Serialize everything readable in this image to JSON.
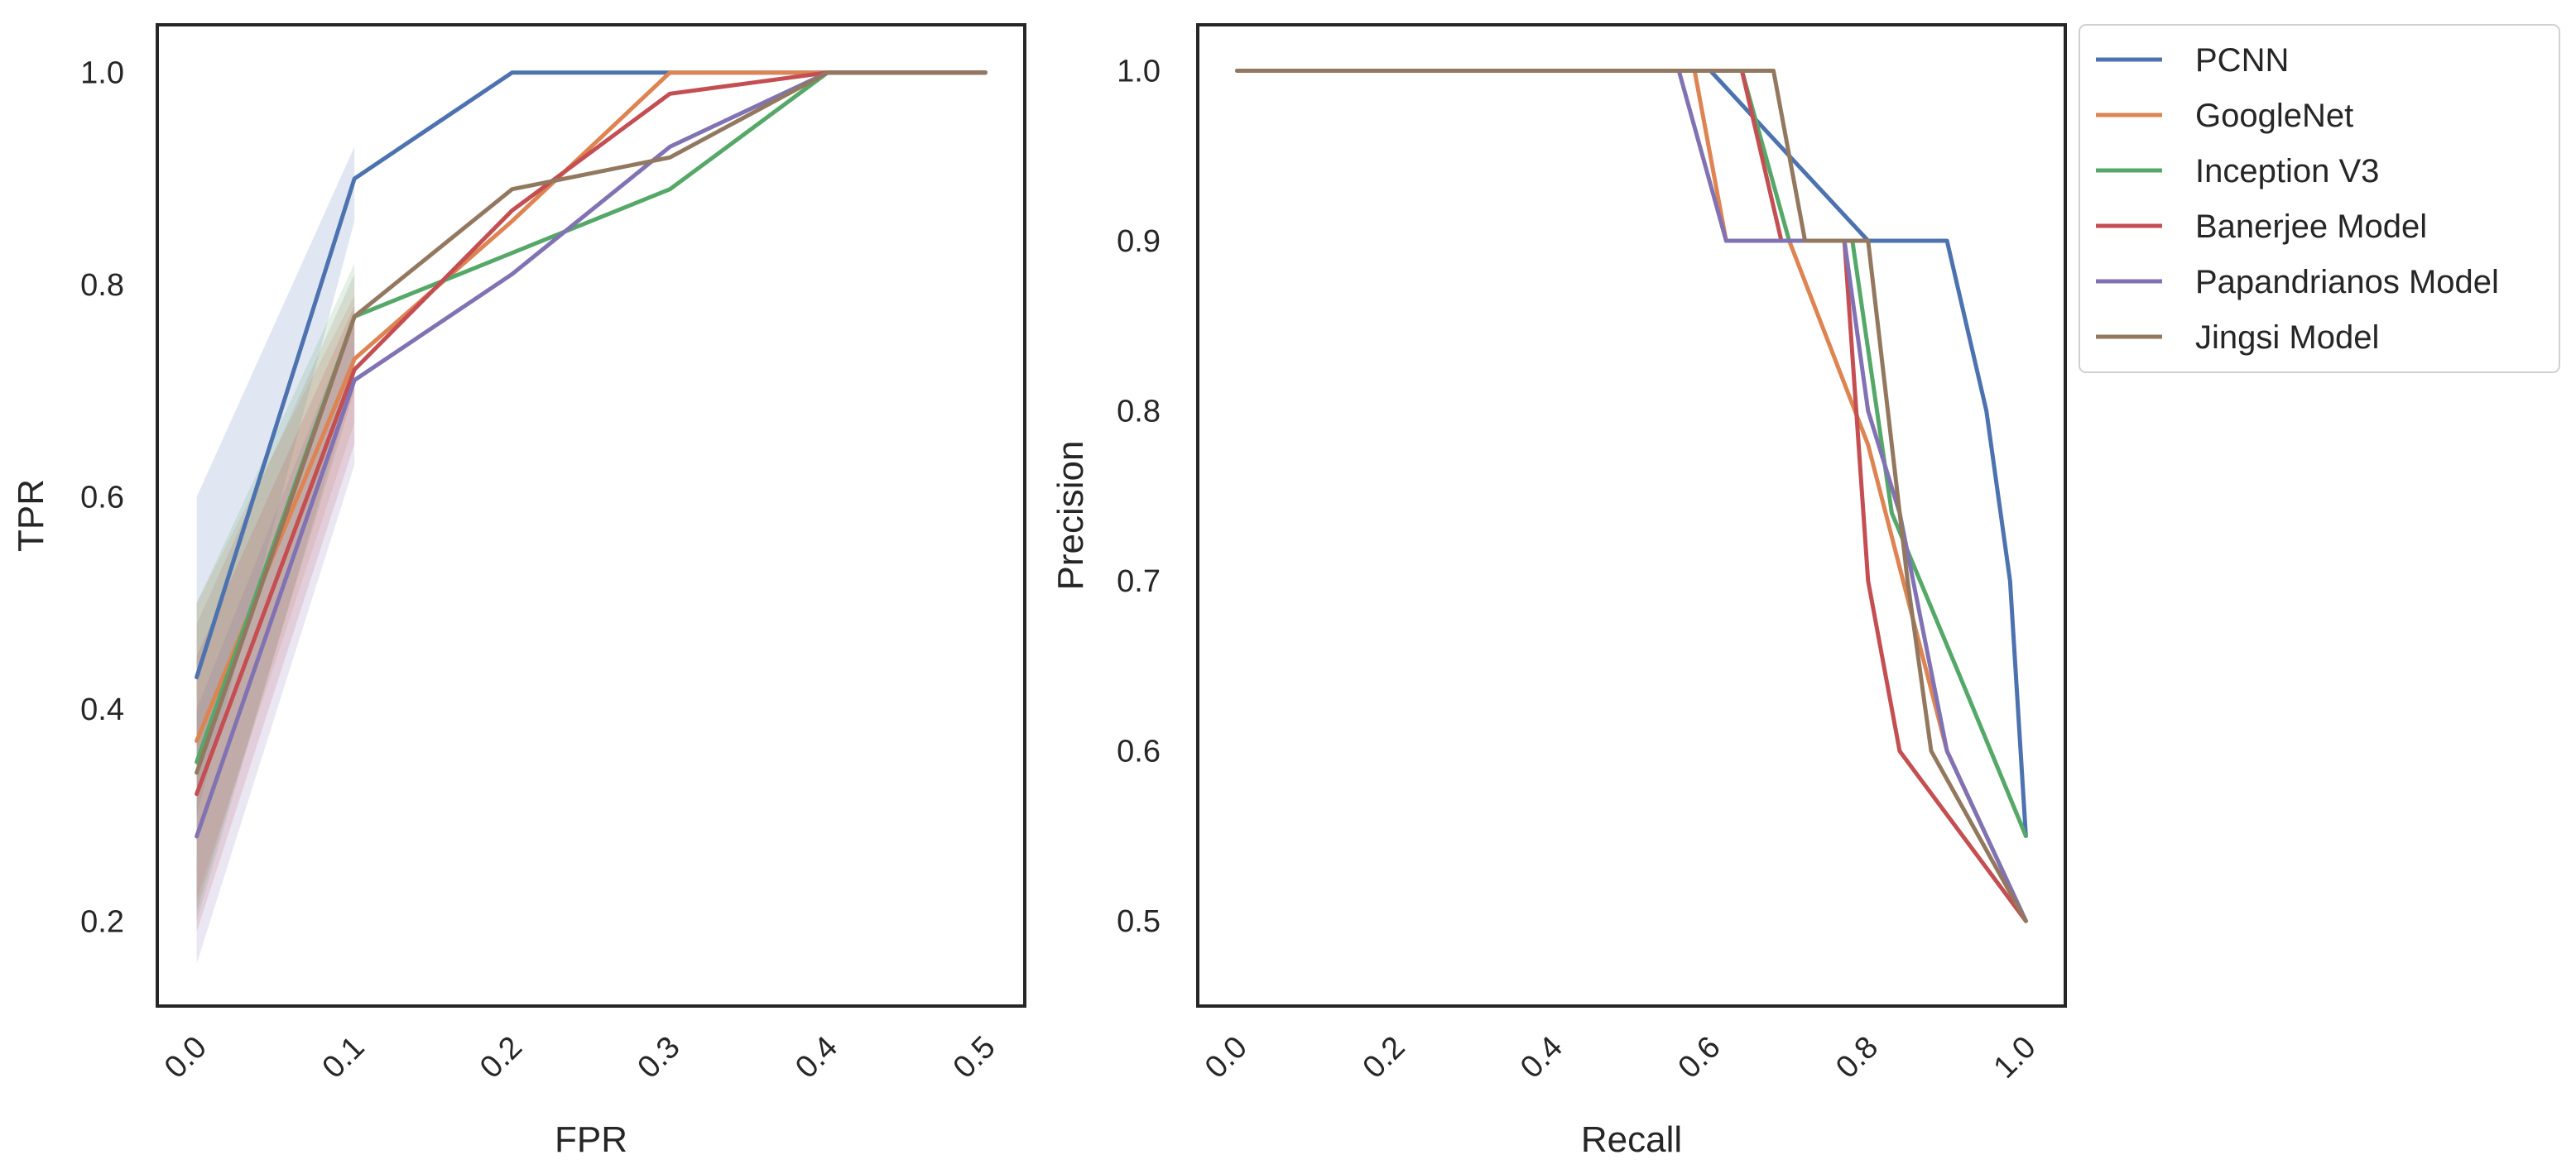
{
  "series_colors": {
    "PCNN": "#4c72b0",
    "GoogleNet": "#dd8452",
    "Inception V3": "#55a868",
    "Banerjee Model": "#c44e52",
    "Papandrianos Model": "#8172b3",
    "Jingsi Model": "#937860"
  },
  "legend": {
    "entries": [
      "PCNN",
      "GoogleNet",
      "Inception V3",
      "Banerjee Model",
      "Papandrianos Model",
      "Jingsi Model"
    ]
  },
  "chart_data": [
    {
      "type": "line",
      "title": "",
      "xlabel": "FPR",
      "ylabel": "TPR",
      "xlim": [
        -0.025,
        0.525
      ],
      "ylim": [
        0.12,
        1.045
      ],
      "xticks": [
        0.0,
        0.1,
        0.2,
        0.3,
        0.4,
        0.5
      ],
      "xtick_labels": [
        "0.0",
        "0.1",
        "0.2",
        "0.3",
        "0.4",
        "0.5"
      ],
      "yticks": [
        0.2,
        0.4,
        0.6,
        0.8,
        1.0
      ],
      "ytick_labels": [
        "0.2",
        "0.4",
        "0.6",
        "0.8",
        "1.0"
      ],
      "series": [
        {
          "name": "PCNN",
          "x": [
            0.0,
            0.1,
            0.2,
            0.3,
            0.4,
            0.5
          ],
          "y": [
            0.43,
            0.9,
            1.0,
            1.0,
            1.0,
            1.0
          ],
          "band": {
            "x": [
              0.0,
              0.1
            ],
            "lower": [
              0.3,
              0.86
            ],
            "upper": [
              0.6,
              0.93
            ]
          }
        },
        {
          "name": "GoogleNet",
          "x": [
            0.0,
            0.1,
            0.2,
            0.3,
            0.4,
            0.5
          ],
          "y": [
            0.37,
            0.73,
            0.86,
            1.0,
            1.0,
            1.0
          ],
          "band": {
            "x": [
              0.0,
              0.1
            ],
            "lower": [
              0.22,
              0.67
            ],
            "upper": [
              0.5,
              0.79
            ]
          }
        },
        {
          "name": "Inception V3",
          "x": [
            0.0,
            0.1,
            0.2,
            0.3,
            0.4,
            0.5
          ],
          "y": [
            0.35,
            0.77,
            0.83,
            0.89,
            1.0,
            1.0
          ],
          "band": {
            "x": [
              0.0,
              0.1
            ],
            "lower": [
              0.2,
              0.71
            ],
            "upper": [
              0.5,
              0.82
            ]
          }
        },
        {
          "name": "Banerjee Model",
          "x": [
            0.0,
            0.1,
            0.2,
            0.3,
            0.4,
            0.5
          ],
          "y": [
            0.32,
            0.72,
            0.87,
            0.98,
            1.0,
            1.0
          ],
          "band": {
            "x": [
              0.0,
              0.1
            ],
            "lower": [
              0.19,
              0.65
            ],
            "upper": [
              0.45,
              0.78
            ]
          }
        },
        {
          "name": "Papandrianos Model",
          "x": [
            0.0,
            0.1,
            0.2,
            0.3,
            0.4,
            0.5
          ],
          "y": [
            0.28,
            0.71,
            0.81,
            0.93,
            1.0,
            1.0
          ],
          "band": {
            "x": [
              0.0,
              0.1
            ],
            "lower": [
              0.16,
              0.63
            ],
            "upper": [
              0.4,
              0.77
            ]
          }
        },
        {
          "name": "Jingsi Model",
          "x": [
            0.0,
            0.1,
            0.2,
            0.3,
            0.4,
            0.5
          ],
          "y": [
            0.34,
            0.77,
            0.89,
            0.92,
            1.0,
            1.0
          ],
          "band": {
            "x": [
              0.0,
              0.1
            ],
            "lower": [
              0.21,
              0.7
            ],
            "upper": [
              0.48,
              0.81
            ]
          }
        }
      ]
    },
    {
      "type": "line",
      "title": "",
      "xlabel": "Recall",
      "ylabel": "Precision",
      "xlim": [
        -0.05,
        1.05
      ],
      "ylim": [
        0.45,
        1.027
      ],
      "xticks": [
        0.0,
        0.2,
        0.4,
        0.6,
        0.8,
        1.0
      ],
      "xtick_labels": [
        "0.0",
        "0.2",
        "0.4",
        "0.6",
        "0.8",
        "1.0"
      ],
      "yticks": [
        0.5,
        0.6,
        0.7,
        0.8,
        0.9,
        1.0
      ],
      "ytick_labels": [
        "0.5",
        "0.6",
        "0.7",
        "0.8",
        "0.9",
        "1.0"
      ],
      "series": [
        {
          "name": "PCNN",
          "x": [
            0.0,
            0.6,
            0.7,
            0.8,
            0.9,
            0.95,
            0.98,
            1.0
          ],
          "y": [
            1.0,
            1.0,
            0.95,
            0.9,
            0.9,
            0.8,
            0.7,
            0.55
          ]
        },
        {
          "name": "GoogleNet",
          "x": [
            0.0,
            0.58,
            0.62,
            0.7,
            0.8,
            0.9,
            1.0
          ],
          "y": [
            1.0,
            1.0,
            0.9,
            0.9,
            0.78,
            0.6,
            0.5
          ]
        },
        {
          "name": "Inception V3",
          "x": [
            0.0,
            0.64,
            0.7,
            0.78,
            0.83,
            0.92,
            1.0
          ],
          "y": [
            1.0,
            1.0,
            0.9,
            0.9,
            0.74,
            0.64,
            0.55
          ]
        },
        {
          "name": "Banerjee Model",
          "x": [
            0.0,
            0.64,
            0.69,
            0.77,
            0.8,
            0.84,
            1.0
          ],
          "y": [
            1.0,
            1.0,
            0.9,
            0.9,
            0.7,
            0.6,
            0.5
          ]
        },
        {
          "name": "Papandrianos Model",
          "x": [
            0.0,
            0.56,
            0.62,
            0.77,
            0.8,
            0.84,
            0.9,
            1.0
          ],
          "y": [
            1.0,
            1.0,
            0.9,
            0.9,
            0.8,
            0.74,
            0.6,
            0.5
          ]
        },
        {
          "name": "Jingsi Model",
          "x": [
            0.0,
            0.68,
            0.72,
            0.8,
            0.85,
            0.88,
            1.0
          ],
          "y": [
            1.0,
            1.0,
            0.9,
            0.9,
            0.7,
            0.6,
            0.5
          ]
        }
      ]
    }
  ]
}
